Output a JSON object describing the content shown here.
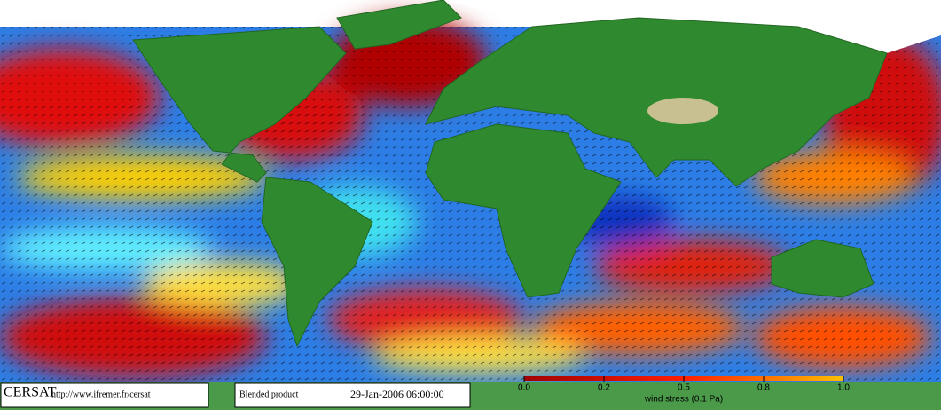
{
  "footer": {
    "logo": "CERSAT",
    "url": "http://www.ifremer.fr/cersat",
    "product": "Blended product",
    "date": "29-Jan-2006 06:00:00"
  },
  "legend": {
    "label": "wind stress (0.1 Pa)",
    "ticks": [
      {
        "value": 0,
        "label": "0.0"
      },
      0.2,
      0.5,
      0.8,
      {
        "value": 1,
        "label": "1.0"
      }
    ]
  }
}
